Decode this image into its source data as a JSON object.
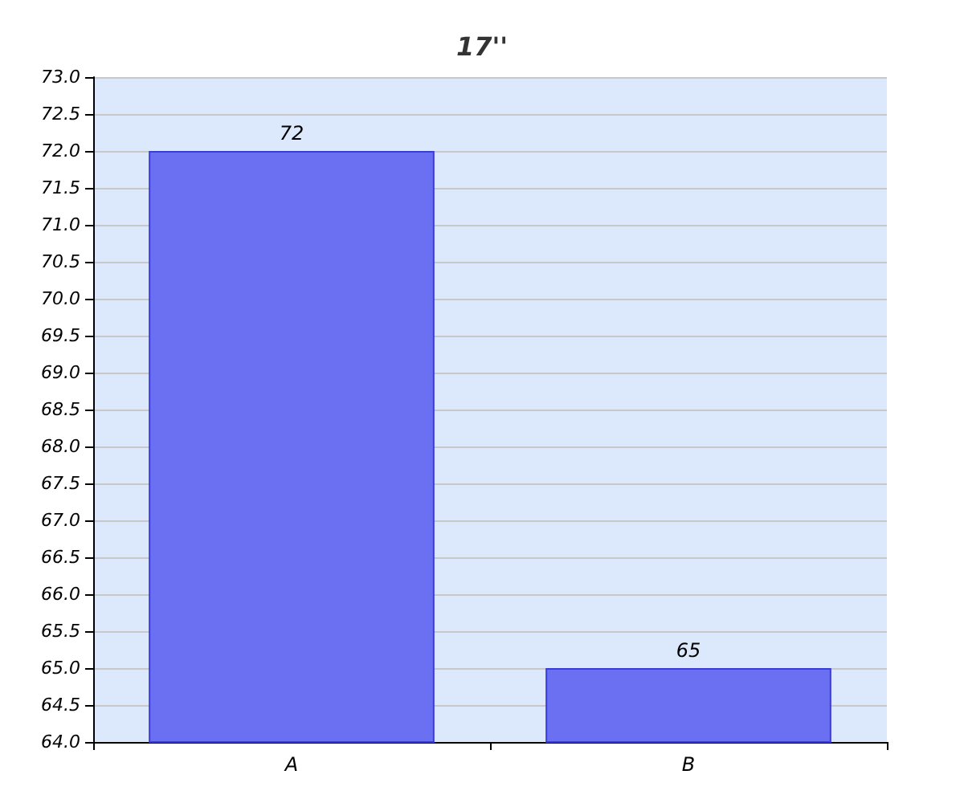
{
  "chart_data": {
    "type": "bar",
    "title": "17''",
    "categories": [
      "A",
      "B"
    ],
    "values": [
      72,
      65
    ],
    "color": "#6b6ff2",
    "data_labels": true,
    "ylim": [
      64,
      73
    ],
    "yticks": [
      {
        "value": 64,
        "label": "64.0"
      },
      {
        "value": 64.5,
        "label": "64.5"
      },
      {
        "value": 65,
        "label": "65.0"
      },
      {
        "value": 65.5,
        "label": "65.5"
      },
      {
        "value": 66,
        "label": "66.0"
      },
      {
        "value": 66.5,
        "label": "66.5"
      },
      {
        "value": 67,
        "label": "67.0"
      },
      {
        "value": 67.5,
        "label": "67.5"
      },
      {
        "value": 68,
        "label": "68.0"
      },
      {
        "value": 68.5,
        "label": "68.5"
      },
      {
        "value": 69,
        "label": "69.0"
      },
      {
        "value": 69.5,
        "label": "69.5"
      },
      {
        "value": 70,
        "label": "70.0"
      },
      {
        "value": 70.5,
        "label": "70.5"
      },
      {
        "value": 71,
        "label": "71.0"
      },
      {
        "value": 71.5,
        "label": "71.5"
      },
      {
        "value": 72,
        "label": "72.0"
      },
      {
        "value": 72.5,
        "label": "72.5"
      },
      {
        "value": 73,
        "label": "73.0"
      }
    ],
    "grid": "y"
  }
}
